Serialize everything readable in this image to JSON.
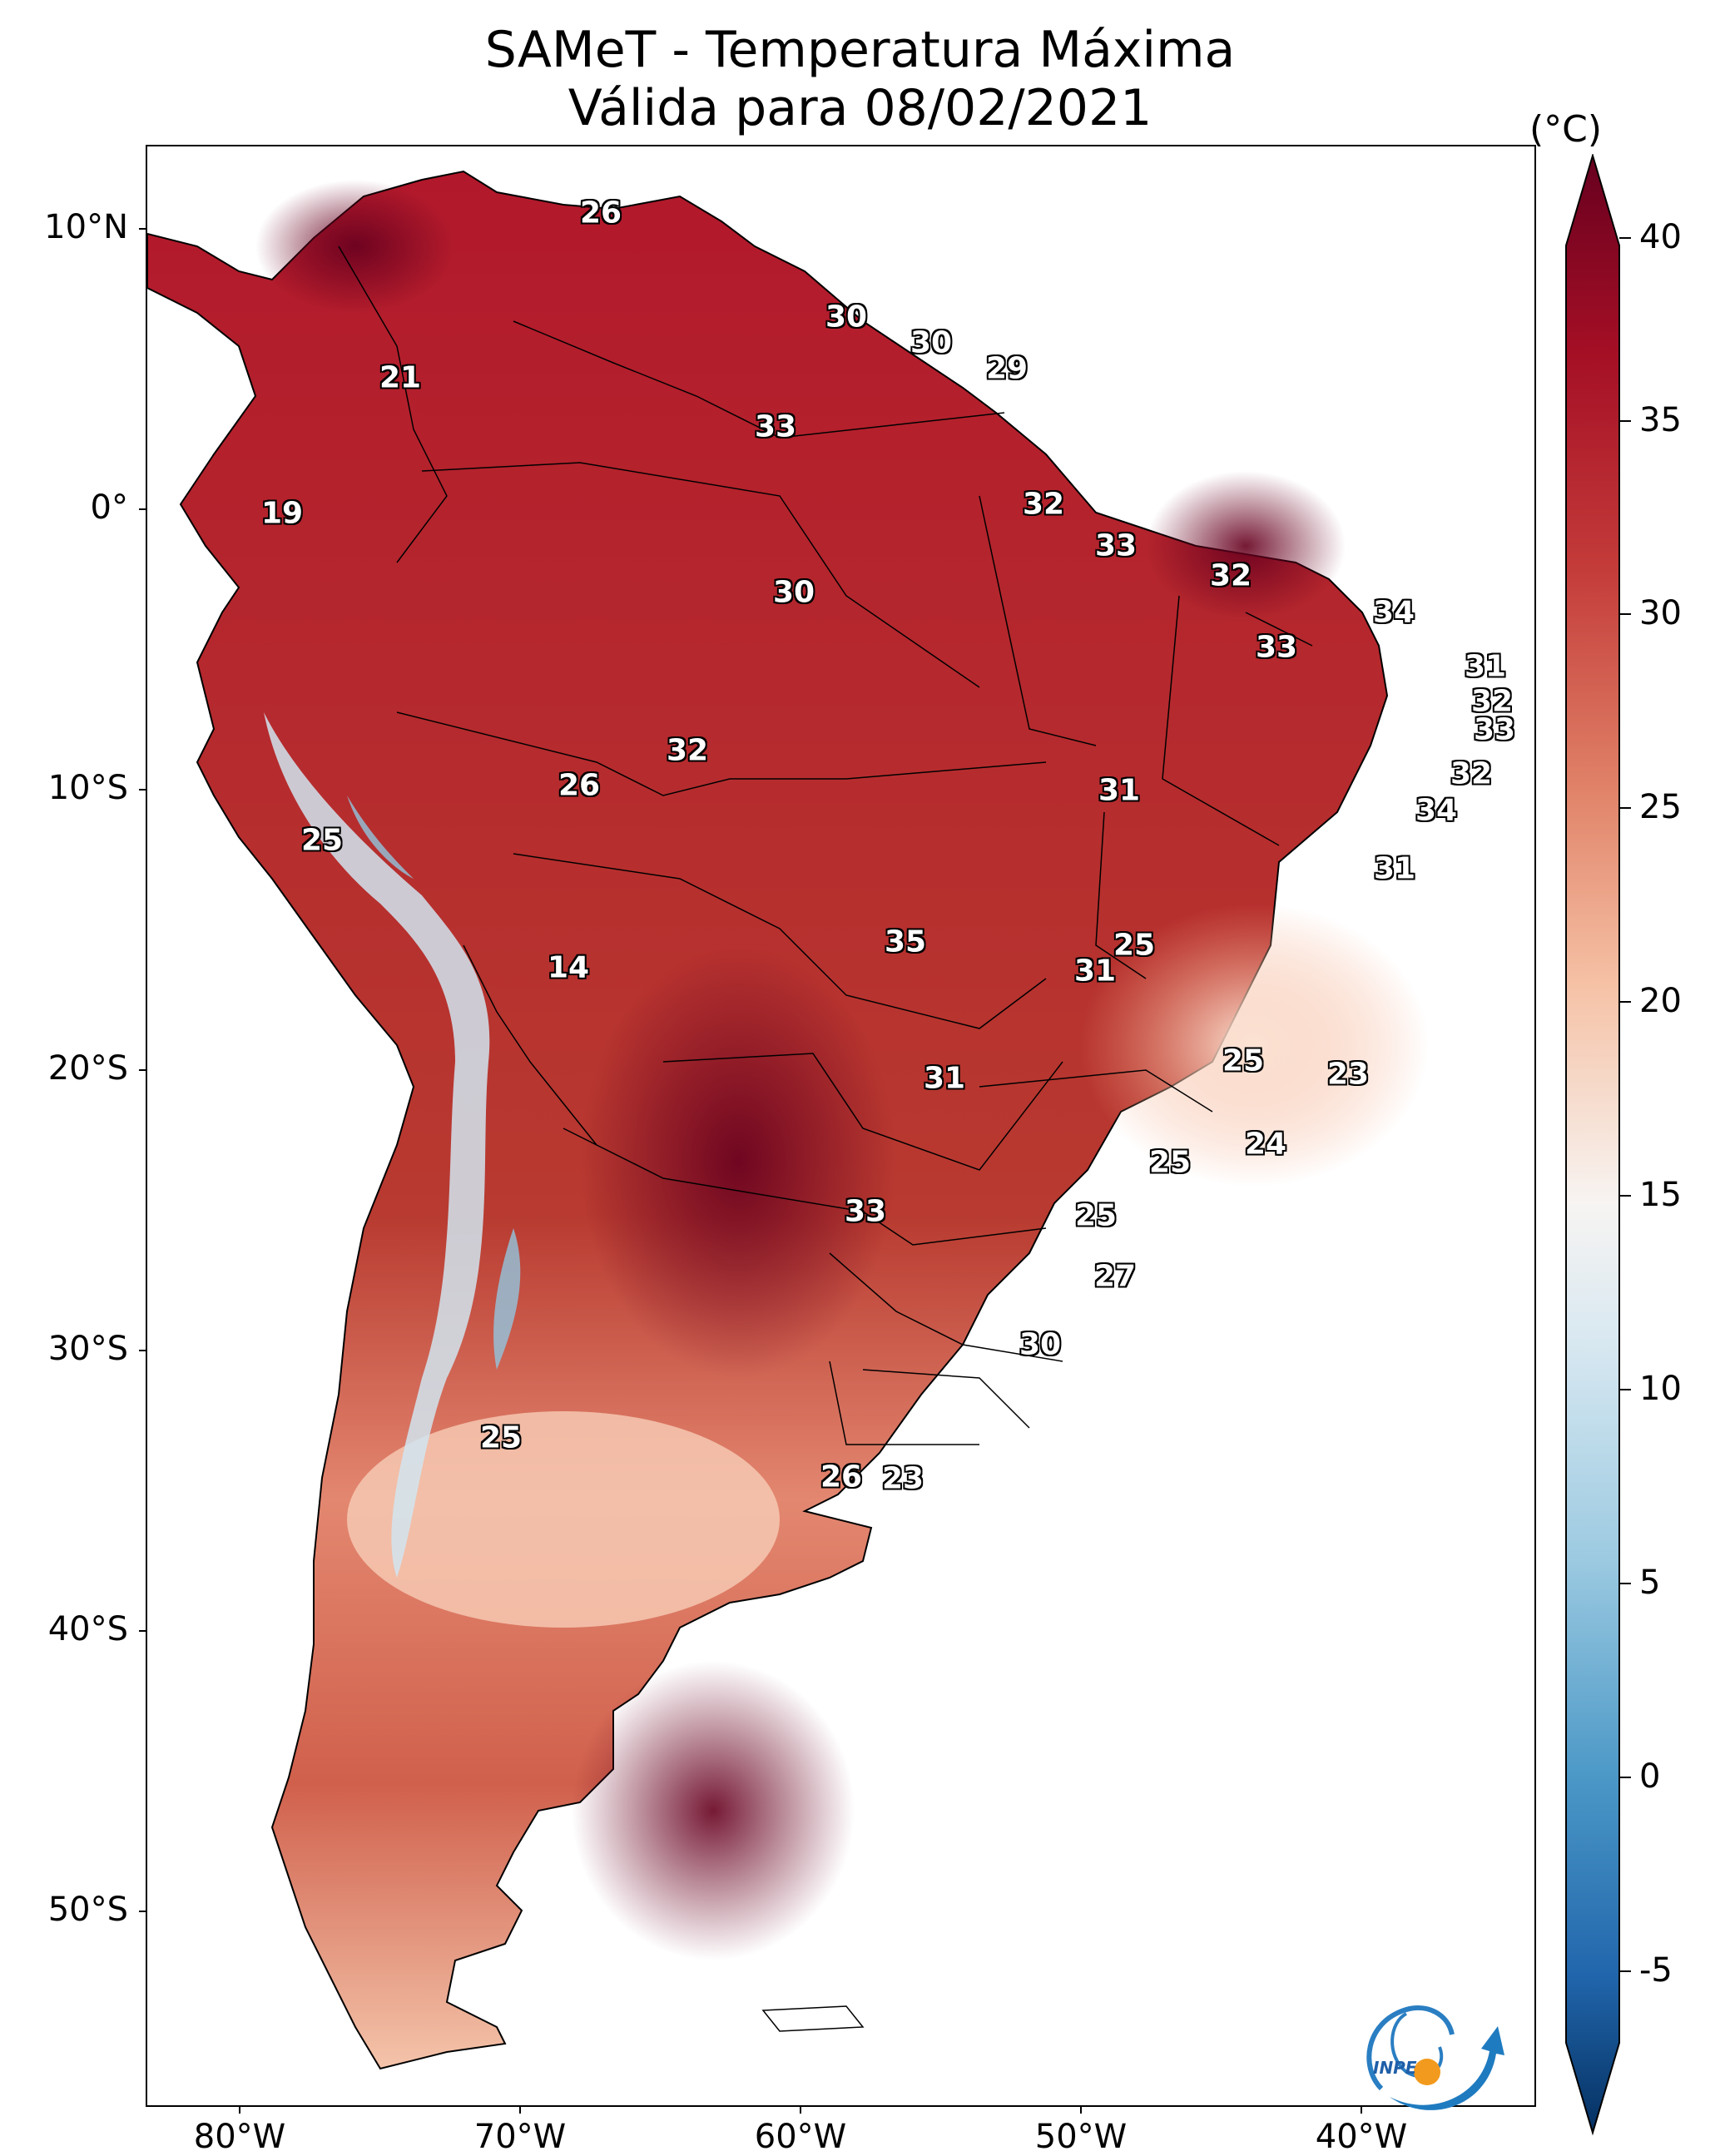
{
  "title": {
    "line1": "SAMeT - Temperatura Máxima",
    "line2": "Válida para 08/02/2021"
  },
  "axes": {
    "lat_labels": [
      "10°N",
      "0°",
      "10°S",
      "20°S",
      "30°S",
      "40°S",
      "50°S"
    ],
    "lon_labels": [
      "80°W",
      "70°W",
      "60°W",
      "50°W",
      "40°W"
    ]
  },
  "colorbar": {
    "unit": "(°C)",
    "labels": [
      "40",
      "35",
      "30",
      "25",
      "20",
      "15",
      "10",
      "5",
      "0",
      "-5"
    ],
    "min": -7,
    "max": 42,
    "colors": {
      "c40": "#67001f",
      "c35": "#b2182b",
      "c30": "#d6604d",
      "c25": "#f4a582",
      "c20": "#fddbc7",
      "c17": "#f7f7f7",
      "c15": "#d1e5f0",
      "c10": "#92c5de",
      "c5": "#4393c3",
      "c0": "#2166ac",
      "cm5": "#053061"
    }
  },
  "values": {
    "v1": "26",
    "v2": "30",
    "v3": "30",
    "v4": "29",
    "v5": "21",
    "v6": "33",
    "v7": "32",
    "v8": "19",
    "v9": "33",
    "v10": "30",
    "v11": "32",
    "v12": "34",
    "v13": "33",
    "v14": "31",
    "v15": "32",
    "v16": "33",
    "v17": "32",
    "v18": "26",
    "v19": "31",
    "v20": "32",
    "v21": "34",
    "v22": "25",
    "v23": "31",
    "v24": "35",
    "v25": "25",
    "v26": "14",
    "v27": "31",
    "v28": "25",
    "v29": "23",
    "v30": "31",
    "v31": "24",
    "v32": "25",
    "v33": "33",
    "v34": "25",
    "v35": "27",
    "v36": "30",
    "v37": "25",
    "v38": "26",
    "v39": "23"
  },
  "logo": {
    "text": "INPE"
  }
}
